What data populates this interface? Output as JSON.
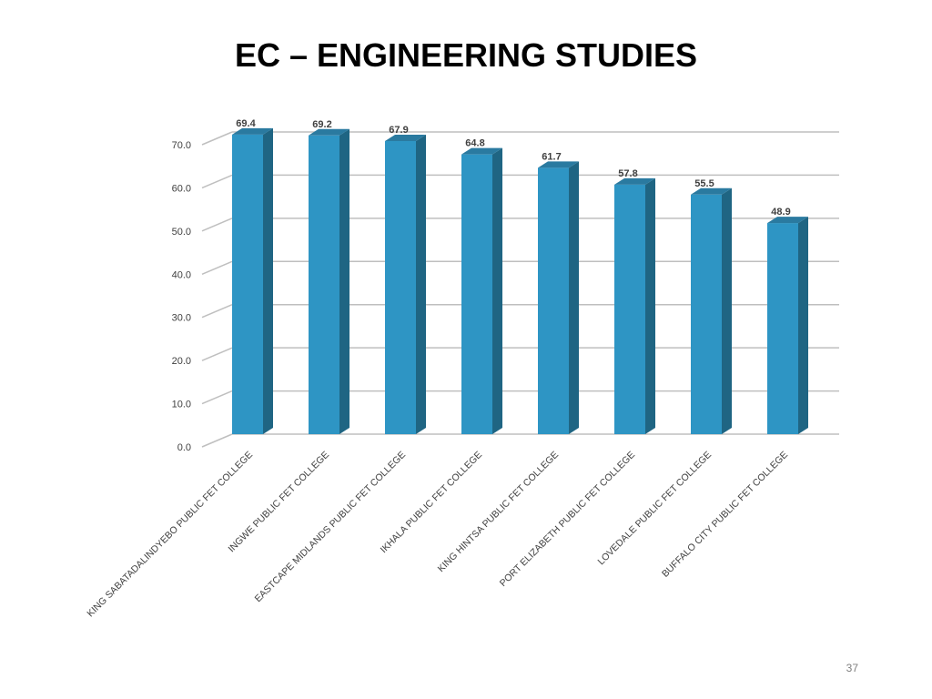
{
  "slide": {
    "title": "EC – ENGINEERING STUDIES",
    "page_number": "37"
  },
  "chart_data": {
    "type": "bar",
    "style": "3d-column",
    "categories": [
      "KING SABATADALINDYEBO PUBLIC FET COLLEGE",
      "INGWE PUBLIC FET COLLEGE",
      "EASTCAPE MIDLANDS PUBLIC FET COLLEGE",
      "IKHALA PUBLIC FET COLLEGE",
      "KING HINTSA PUBLIC FET COLLEGE",
      "PORT ELIZABETH PUBLIC FET COLLEGE",
      "LOVEDALE PUBLIC FET COLLEGE",
      "BUFFALO CITY PUBLIC FET COLLEGE"
    ],
    "values": [
      69.4,
      69.2,
      67.9,
      64.8,
      61.7,
      57.8,
      55.5,
      48.9
    ],
    "data_labels": [
      "69.4",
      "69.2",
      "67.9",
      "64.8",
      "61.7",
      "57.8",
      "55.5",
      "48.9"
    ],
    "y_ticks": [
      "0.0",
      "10.0",
      "20.0",
      "30.0",
      "40.0",
      "50.0",
      "60.0",
      "70.0"
    ],
    "ylim": [
      0,
      70
    ],
    "grid": true,
    "legend": "none",
    "colors": {
      "bar_front": "#2e95c4",
      "bar_side": "#1f6583",
      "bar_top": "#2a7aa0",
      "grid": "#bfbfbf"
    }
  }
}
